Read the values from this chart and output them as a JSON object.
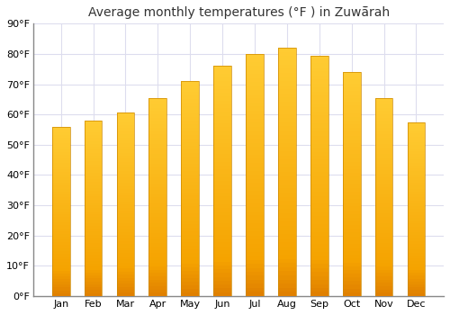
{
  "title": "Average monthly temperatures (°F ) in Zuwā̄rah",
  "months": [
    "Jan",
    "Feb",
    "Mar",
    "Apr",
    "May",
    "Jun",
    "Jul",
    "Aug",
    "Sep",
    "Oct",
    "Nov",
    "Dec"
  ],
  "values": [
    56,
    58,
    60.5,
    65.5,
    71,
    76,
    80,
    82,
    79.5,
    74,
    65.5,
    57.5
  ],
  "bar_color_center": "#FFCC33",
  "bar_color_edge": "#F5A300",
  "bar_color_bottom": "#E08000",
  "ylim": [
    0,
    90
  ],
  "yticks": [
    0,
    10,
    20,
    30,
    40,
    50,
    60,
    70,
    80,
    90
  ],
  "ytick_labels": [
    "0°F",
    "10°F",
    "20°F",
    "30°F",
    "40°F",
    "50°F",
    "60°F",
    "70°F",
    "80°F",
    "90°F"
  ],
  "background_color": "#ffffff",
  "grid_color": "#ddddee",
  "title_fontsize": 10,
  "tick_fontsize": 8,
  "bar_width": 0.55
}
